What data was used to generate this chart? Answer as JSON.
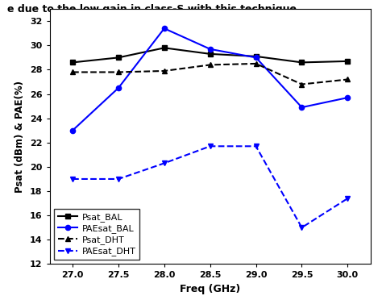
{
  "freq": [
    27.0,
    27.5,
    28.0,
    28.5,
    29.0,
    29.5,
    30.0
  ],
  "Psat_BAL": [
    28.6,
    29.0,
    29.8,
    29.3,
    29.1,
    28.6,
    28.7
  ],
  "PAEsat_BAL": [
    23.0,
    26.5,
    31.4,
    29.7,
    29.0,
    24.9,
    25.7
  ],
  "Psat_DHT": [
    27.8,
    27.8,
    27.9,
    28.4,
    28.5,
    26.8,
    27.2
  ],
  "PAEsat_DHT": [
    19.0,
    19.0,
    20.3,
    21.7,
    21.7,
    15.0,
    17.4
  ],
  "xlabel": "Freq (GHz)",
  "ylabel": "Psat (dBm) & PAE(%)",
  "ylim": [
    12,
    33
  ],
  "yticks": [
    12,
    14,
    16,
    18,
    20,
    22,
    24,
    26,
    28,
    30,
    32
  ],
  "xticks": [
    27.0,
    27.5,
    28.0,
    28.5,
    29.0,
    29.5,
    30.0
  ],
  "xlim": [
    26.75,
    30.25
  ],
  "legend_labels": [
    "Psat_BAL",
    "PAEsat_BAL",
    "Psat_DHT",
    "PAEsat_DHT"
  ],
  "color_black": "#000000",
  "color_blue": "#0000ff",
  "top_text": "e due to the low gain in class-S with this technique"
}
